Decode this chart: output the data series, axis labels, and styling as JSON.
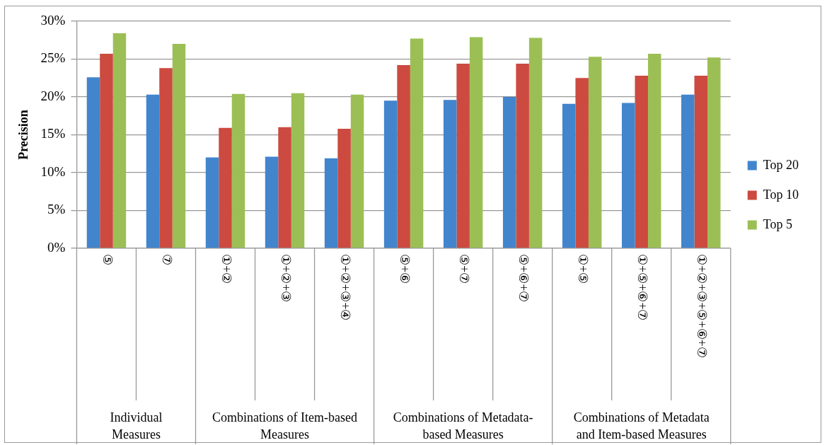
{
  "chart_data": {
    "type": "bar",
    "ylabel": "Precision",
    "categories": [
      "⑤",
      "⑦",
      "①+②",
      "①+②+③",
      "①+②+③+④",
      "⑤+⑥",
      "⑤+⑦",
      "⑤+⑥+⑦",
      "①+⑤",
      "①+⑤+⑥+⑦",
      "①+②+③+⑤+⑥+⑦"
    ],
    "series": [
      {
        "name": "Top 20",
        "color": "#4285cd",
        "values": [
          22.6,
          20.3,
          12.0,
          12.1,
          11.9,
          19.5,
          19.6,
          20.0,
          19.1,
          19.2,
          20.3
        ]
      },
      {
        "name": "Top 10",
        "color": "#cc4a40",
        "values": [
          25.7,
          23.8,
          15.9,
          16.0,
          15.8,
          24.2,
          24.4,
          24.4,
          22.5,
          22.8,
          22.8
        ]
      },
      {
        "name": "Top 5",
        "color": "#9cbf55",
        "values": [
          28.4,
          27.0,
          20.4,
          20.5,
          20.3,
          27.7,
          27.9,
          27.8,
          25.3,
          25.7,
          25.2
        ]
      }
    ],
    "ylim": [
      0,
      30
    ],
    "yticks": [
      {
        "value": 0,
        "label": "0%"
      },
      {
        "value": 5,
        "label": "5%"
      },
      {
        "value": 10,
        "label": "10%"
      },
      {
        "value": 15,
        "label": "15%"
      },
      {
        "value": 20,
        "label": "20%"
      },
      {
        "value": 25,
        "label": "25%"
      },
      {
        "value": 30,
        "label": "30%"
      }
    ],
    "grid": "y",
    "legend": "right",
    "annotations": [
      "Individual Measures",
      "Combinations of Item-based Measures",
      "Combinations of Metadata-based Measures",
      "Combinations of Metadata and Item-based Measures"
    ]
  }
}
